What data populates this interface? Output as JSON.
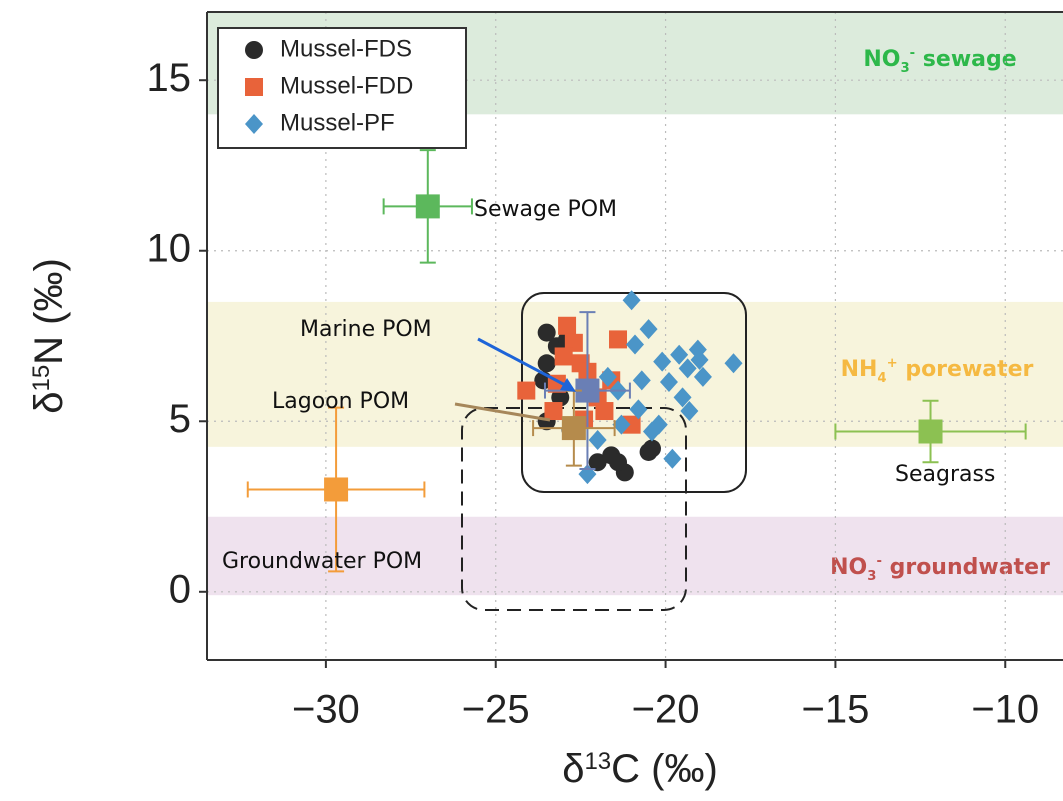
{
  "chart_data": {
    "type": "scatter",
    "x_label": [
      {
        "text": "δ"
      },
      {
        "text": "13",
        "shift": "sup"
      },
      {
        "text": "C (‰)"
      }
    ],
    "y_label": [
      {
        "text": "δ"
      },
      {
        "text": "15",
        "shift": "sup"
      },
      {
        "text": "N (‰)"
      }
    ],
    "xlim": [
      -33.5,
      -8.3
    ],
    "ylim": [
      -2,
      17
    ],
    "xticks": [
      {
        "value": -30,
        "label": "−30"
      },
      {
        "value": -25,
        "label": "−25"
      },
      {
        "value": -20,
        "label": "−20"
      },
      {
        "value": -15,
        "label": "−15"
      },
      {
        "value": -10,
        "label": "−10"
      }
    ],
    "yticks": [
      0,
      5,
      10,
      15
    ],
    "grid": true,
    "legend": "top-left",
    "bands": [
      {
        "ymin": 14,
        "ymax": 17,
        "color": "#dcebdc",
        "label_color": "#2db84a",
        "label": [
          {
            "text": "NO"
          },
          {
            "text": "3",
            "shift": "sub"
          },
          {
            "text": "-",
            "shift": "sup"
          },
          {
            "text": " sewage"
          }
        ]
      },
      {
        "ymin": 4.25,
        "ymax": 8.5,
        "color": "#f7f4dc",
        "label_color": "#f5b942",
        "label": [
          {
            "text": "NH"
          },
          {
            "text": "4",
            "shift": "sub"
          },
          {
            "text": "+",
            "shift": "sup"
          },
          {
            "text": " porewater"
          }
        ]
      },
      {
        "ymin": -0.1,
        "ymax": 2.2,
        "color": "#efe2ee",
        "label_color": "#c0504d",
        "label": [
          {
            "text": "NO"
          },
          {
            "text": "3",
            "shift": "sub"
          },
          {
            "text": "-",
            "shift": "sup"
          },
          {
            "text": " groundwater"
          }
        ]
      }
    ],
    "series": [
      {
        "name": "Mussel-FDS",
        "color": "#2b2b2b",
        "marker": "circle",
        "x": [
          -23.5,
          -23.2,
          -23.5,
          -22.9,
          -23.6,
          -23.1,
          -23.5,
          -22.8,
          -22.0,
          -21.6,
          -21.2,
          -21.4,
          -20.5,
          -20.4
        ],
        "y": [
          7.6,
          7.2,
          6.7,
          7.4,
          6.2,
          5.7,
          5.0,
          4.75,
          3.8,
          4.0,
          3.5,
          3.8,
          4.1,
          4.2
        ]
      },
      {
        "name": "Mussel-FDD",
        "color": "#e8633a",
        "marker": "square",
        "x": [
          -22.9,
          -22.7,
          -23.0,
          -22.5,
          -22.3,
          -24.1,
          -23.2,
          -22.0,
          -21.4,
          -21.8,
          -23.3,
          -22.4,
          -21.0,
          -21.6
        ],
        "y": [
          7.8,
          7.3,
          6.9,
          6.7,
          6.45,
          5.9,
          6.1,
          5.7,
          7.4,
          5.3,
          5.3,
          5.05,
          4.9,
          6.2
        ]
      },
      {
        "name": "Mussel-PF",
        "color": "#4b95c8",
        "marker": "diamond",
        "x": [
          -21.0,
          -20.5,
          -20.9,
          -20.1,
          -19.6,
          -19.35,
          -19.0,
          -18.9,
          -19.9,
          -19.5,
          -19.3,
          -20.2,
          -20.8,
          -21.4,
          -21.7,
          -18.0,
          -21.3,
          -20.4,
          -19.8,
          -22.3,
          -19.05,
          -20.7,
          -22.0
        ],
        "y": [
          8.55,
          7.7,
          7.25,
          6.75,
          6.95,
          6.55,
          6.8,
          6.3,
          6.15,
          5.7,
          5.3,
          4.9,
          5.35,
          5.9,
          6.3,
          6.7,
          4.9,
          4.7,
          3.9,
          3.45,
          7.1,
          6.2,
          4.45
        ]
      }
    ],
    "sources": [
      {
        "name": "Sewage POM",
        "x": -27.0,
        "y": 11.3,
        "xerr": 1.3,
        "yerr": 1.65,
        "color": "#5cb85c"
      },
      {
        "name": "Groundwater POM",
        "x": -29.7,
        "y": 3.0,
        "xerr": 2.6,
        "yerr": 2.4,
        "color": "#f39c3a"
      },
      {
        "name": "Seagrass",
        "x": -12.2,
        "y": 4.7,
        "xerr": 2.8,
        "yerr": 0.9,
        "color": "#8cc152"
      },
      {
        "name": "Marine POM",
        "x": -22.3,
        "y": 5.9,
        "xerr": 1.25,
        "yerr": 2.3,
        "color": "#6a7fb5"
      },
      {
        "name": "Lagoon POM",
        "x": -22.7,
        "y": 4.8,
        "xerr": 1.2,
        "yerr": 1.1,
        "color": "#b58b4c"
      }
    ]
  }
}
